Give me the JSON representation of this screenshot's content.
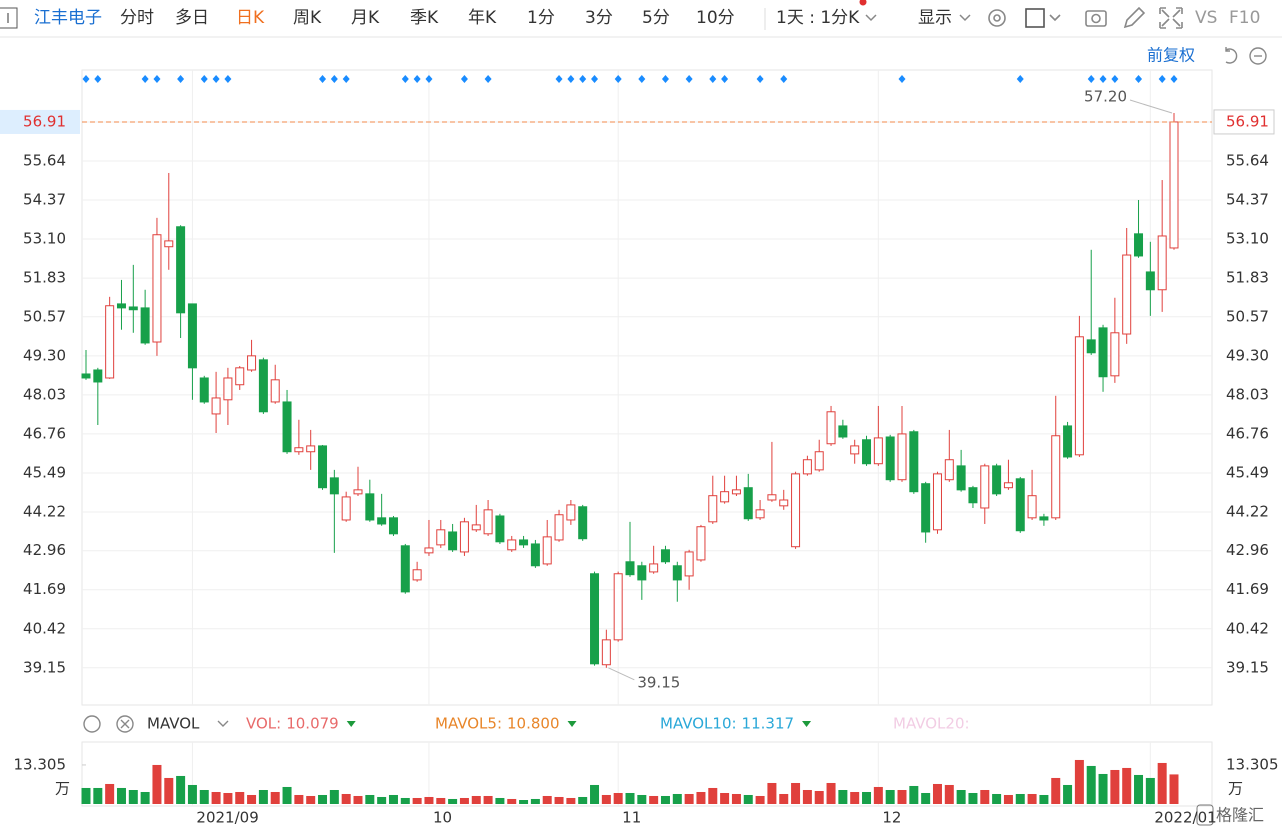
{
  "toolbar": {
    "stock": "江丰电子",
    "tabs": [
      "分时",
      "多日",
      "日K",
      "周K",
      "月K",
      "季K",
      "年K",
      "1分",
      "3分",
      "5分",
      "10分"
    ],
    "period": "1天 : 1分K",
    "display": "显示",
    "vs": "VS",
    "f10": "F10"
  },
  "adjust": "前复权",
  "chart_data": [
    {
      "type": "candlestick",
      "categories": [
        null,
        null,
        null,
        null,
        null,
        null,
        null,
        null,
        null,
        "2021/09",
        null,
        null,
        null,
        null,
        null,
        null,
        null,
        null,
        null,
        null,
        null,
        null,
        null,
        null,
        null,
        null,
        null,
        null,
        null,
        "10",
        null,
        null,
        null,
        null,
        null,
        null,
        null,
        null,
        null,
        null,
        null,
        null,
        null,
        null,
        null,
        "11",
        null,
        null,
        null,
        null,
        null,
        null,
        null,
        null,
        null,
        null,
        null,
        null,
        null,
        null,
        null,
        null,
        null,
        null,
        null,
        null,
        null,
        "12",
        null,
        null,
        null,
        null,
        null,
        null,
        null,
        null,
        null,
        null,
        null,
        null,
        null,
        null,
        null,
        null,
        null,
        null,
        null,
        null,
        null,
        null,
        "2022/01",
        null,
        null
      ],
      "open": [
        48.71,
        48.84,
        48.58,
        50.99,
        50.89,
        50.86,
        49.75,
        52.85,
        53.5,
        50.99,
        48.58,
        47.41,
        47.87,
        48.36,
        48.84,
        49.17,
        47.8,
        47.8,
        46.18,
        46.18,
        46.37,
        45.33,
        43.96,
        44.81,
        44.81,
        44.03,
        44.03,
        43.12,
        42.01,
        42.89,
        43.15,
        43.57,
        42.92,
        43.64,
        43.51,
        44.09,
        42.99,
        43.31,
        43.18,
        42.53,
        43.31,
        43.96,
        44.39,
        42.21,
        39.25,
        40.06,
        42.6,
        42.47,
        42.27,
        42.99,
        42.47,
        42.14,
        42.66,
        43.9,
        44.55,
        44.81,
        45.01,
        44.03,
        44.61,
        44.42,
        43.09,
        45.46,
        45.59,
        46.44,
        47.02,
        46.11,
        46.57,
        45.79,
        46.66,
        45.27,
        46.83,
        45.14,
        43.64,
        45.27,
        45.72,
        45.01,
        44.35,
        45.72,
        45.01,
        45.3,
        44.03,
        44.06,
        44.03,
        47.02,
        46.08,
        49.82,
        50.21,
        48.65,
        50.01,
        53.27,
        52.03,
        51.45,
        52.81
      ],
      "high": [
        49.49,
        48.91,
        51.22,
        51.77,
        52.26,
        51.45,
        53.79,
        55.25,
        53.55,
        50.99,
        48.65,
        48.78,
        48.91,
        48.97,
        49.82,
        49.24,
        49.01,
        48.19,
        47.22,
        46.89,
        46.4,
        45.59,
        44.88,
        45.69,
        45.27,
        44.81,
        44.09,
        43.18,
        42.6,
        43.96,
        43.96,
        43.83,
        44.03,
        44.45,
        44.61,
        44.16,
        43.44,
        43.44,
        43.31,
        43.96,
        44.29,
        44.61,
        44.45,
        42.28,
        40.39,
        42.28,
        43.9,
        42.6,
        43.12,
        43.12,
        42.6,
        42.99,
        43.8,
        45.4,
        45.4,
        45.4,
        45.46,
        44.61,
        46.5,
        44.94,
        45.53,
        46.05,
        46.57,
        47.67,
        47.22,
        46.57,
        46.7,
        47.67,
        46.73,
        47.67,
        46.89,
        45.2,
        45.53,
        46.89,
        46.24,
        45.07,
        45.79,
        45.79,
        45.92,
        45.36,
        45.59,
        44.16,
        48.0,
        47.15,
        50.6,
        52.75,
        50.31,
        51.19,
        53.46,
        54.37,
        53.01,
        55.02,
        57.2
      ],
      "low": [
        48.52,
        47.05,
        48.55,
        50.15,
        50.05,
        49.66,
        49.3,
        52.1,
        49.88,
        47.87,
        47.74,
        46.79,
        47.05,
        48.19,
        48.78,
        47.41,
        47.74,
        46.11,
        46.08,
        45.59,
        44.94,
        42.89,
        43.9,
        44.74,
        43.9,
        43.77,
        43.44,
        41.56,
        41.95,
        42.79,
        43.05,
        42.92,
        42.79,
        43.57,
        43.44,
        43.18,
        42.92,
        43.05,
        42.4,
        42.47,
        43.25,
        43.8,
        43.28,
        39.22,
        39.15,
        40.0,
        42.11,
        41.36,
        42.21,
        42.53,
        41.3,
        41.69,
        42.6,
        43.83,
        44.49,
        44.74,
        43.93,
        43.96,
        44.55,
        44.29,
        43.02,
        45.4,
        45.53,
        46.37,
        46.6,
        45.79,
        45.72,
        45.72,
        45.2,
        45.2,
        44.81,
        43.22,
        43.51,
        45.2,
        44.88,
        44.35,
        43.83,
        44.74,
        44.94,
        43.54,
        43.96,
        43.77,
        43.96,
        45.95,
        46.01,
        49.33,
        48.13,
        48.42,
        49.69,
        52.49,
        50.6,
        50.73,
        52.75
      ],
      "close": [
        48.58,
        48.45,
        50.93,
        50.86,
        50.8,
        49.72,
        53.24,
        53.04,
        50.7,
        48.91,
        47.8,
        47.93,
        48.58,
        48.91,
        49.3,
        47.48,
        48.52,
        46.18,
        46.31,
        46.37,
        45.01,
        44.81,
        44.71,
        44.94,
        43.96,
        43.83,
        43.51,
        41.62,
        42.34,
        43.05,
        43.64,
        42.99,
        43.9,
        43.8,
        44.29,
        43.25,
        43.31,
        43.15,
        42.47,
        43.41,
        44.13,
        44.45,
        43.35,
        39.28,
        40.06,
        42.21,
        42.18,
        42.01,
        42.53,
        42.6,
        42.01,
        42.92,
        43.74,
        44.75,
        44.88,
        44.94,
        44.0,
        44.29,
        44.78,
        44.61,
        45.46,
        45.92,
        46.18,
        47.48,
        46.66,
        46.37,
        45.79,
        46.63,
        45.27,
        46.76,
        44.88,
        43.57,
        45.46,
        45.92,
        44.94,
        44.52,
        45.72,
        44.81,
        45.17,
        43.61,
        44.75,
        43.96,
        46.7,
        46.01,
        49.92,
        49.4,
        48.62,
        50.05,
        52.58,
        52.55,
        51.45,
        53.2,
        56.91
      ],
      "ylim": [
        37.94,
        58.6
      ],
      "yticks": [
        39.15,
        40.42,
        41.69,
        42.96,
        44.22,
        45.49,
        46.76,
        48.03,
        {
          "value": 49.3,
          "label": "49.30"
        },
        50.57,
        51.83,
        {
          "value": 53.1,
          "label": "53.10"
        },
        54.37,
        55.64,
        56.91
      ],
      "last_price": 56.91,
      "annotations": [
        {
          "value": 57.2,
          "label": "57.20"
        },
        39.15
      ],
      "up_color": "#e0403c",
      "down_color": "#17a04a",
      "grid": true
    },
    {
      "type": "bar",
      "title": "MAVOL",
      "values": [
        5.46,
        5.46,
        6.82,
        5.46,
        4.77,
        4.09,
        13.3,
        8.87,
        9.55,
        6.48,
        4.77,
        4.09,
        3.75,
        4.09,
        3.07,
        4.77,
        4.09,
        5.8,
        3.07,
        2.73,
        3.07,
        4.77,
        3.41,
        2.73,
        3.07,
        2.39,
        3.07,
        2.05,
        2.05,
        2.39,
        2.05,
        1.71,
        2.05,
        2.73,
        2.73,
        2.05,
        1.71,
        1.36,
        1.71,
        2.73,
        2.39,
        2.05,
        2.39,
        6.48,
        3.07,
        3.75,
        3.75,
        3.07,
        2.73,
        2.73,
        3.41,
        3.41,
        4.09,
        5.46,
        3.75,
        3.41,
        3.07,
        2.73,
        7.16,
        3.41,
        7.16,
        4.77,
        4.43,
        7.16,
        4.77,
        4.09,
        4.09,
        5.8,
        4.77,
        4.77,
        6.14,
        3.75,
        6.82,
        6.48,
        4.77,
        3.75,
        4.77,
        3.41,
        3.07,
        3.41,
        3.41,
        3.07,
        8.87,
        6.48,
        15.0,
        12.96,
        10.23,
        11.59,
        12.28,
        9.89,
        8.87,
        13.98,
        10.079
      ],
      "ylim": [
        0,
        20.1
      ],
      "yticks": [
        13.305
      ],
      "unit": "万",
      "indicators": {
        "names": [
          "VOL:",
          "MAVOL5:",
          "MAVOL10:",
          "MAVOL20:"
        ],
        "values": [
          10.079,
          10.8,
          11.317,
          null
        ],
        "value_labels": [
          "10.079",
          "10.800",
          "11.317",
          null
        ],
        "colors": [
          "#e86a6a",
          "#e8862a",
          "#2aa8d8",
          "#f2cde4"
        ]
      }
    }
  ]
}
